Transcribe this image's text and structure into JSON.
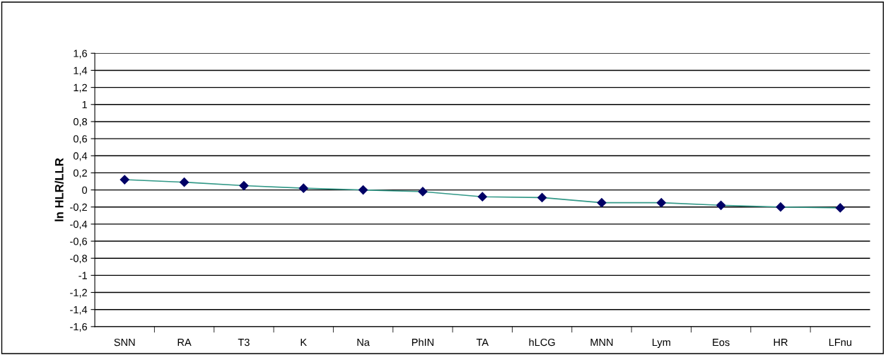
{
  "chart_data": {
    "type": "line",
    "ylabel": "ln HLR/LLR",
    "categories": [
      "SNN",
      "RA",
      "T3",
      "K",
      "Na",
      "PhIN",
      "TA",
      "hLCG",
      "MNN",
      "Lym",
      "Eos",
      "HR",
      "LFnu"
    ],
    "series": [
      {
        "color": "#000066",
        "values": [
          0.12,
          0.09,
          0.05,
          0.02,
          0.0,
          -0.02,
          -0.08,
          -0.09,
          -0.15,
          -0.15,
          -0.18,
          -0.2,
          -0.21
        ]
      }
    ],
    "marker": "diamond",
    "line_style": "solid",
    "grid": "y",
    "legend": false,
    "ylim": [
      -1.6,
      1.6
    ],
    "yticks": [
      {
        "value": -1.6,
        "label": "-1,6"
      },
      {
        "value": -1.4,
        "label": "-1,4"
      },
      {
        "value": -1.2,
        "label": "-1,2"
      },
      {
        "value": -1,
        "label": "-1"
      },
      {
        "value": -0.8,
        "label": "-0,8"
      },
      {
        "value": -0.6,
        "label": "-0,6"
      },
      {
        "value": -0.4,
        "label": "-0,4"
      },
      {
        "value": -0.2,
        "label": "-0,2"
      },
      {
        "value": 0,
        "label": "0"
      },
      {
        "value": 0.2,
        "label": "0,2"
      },
      {
        "value": 0.4,
        "label": "0,4"
      },
      {
        "value": 0.6,
        "label": "0,6"
      },
      {
        "value": 0.8,
        "label": "0,8"
      },
      {
        "value": 1,
        "label": "1"
      },
      {
        "value": 1.2,
        "label": "1,2"
      },
      {
        "value": 1.4,
        "label": "1,4"
      },
      {
        "value": 1.6,
        "label": "1,6"
      }
    ]
  }
}
